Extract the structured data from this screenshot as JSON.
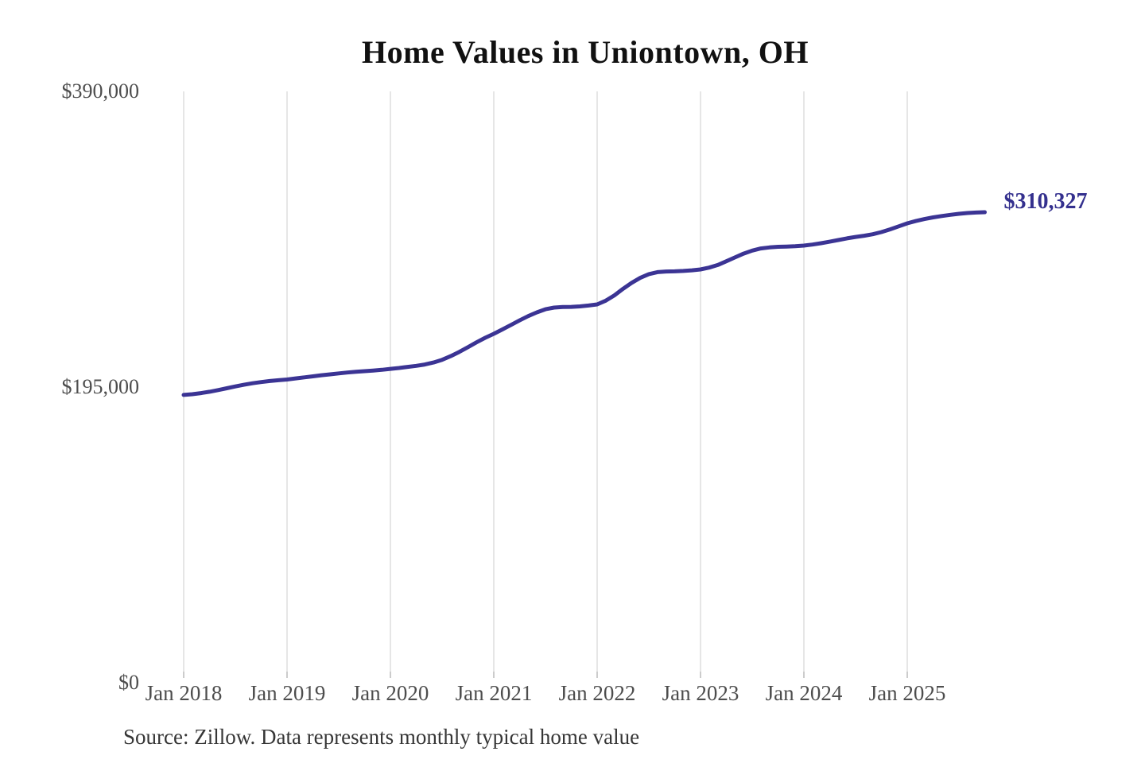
{
  "page": {
    "background": "#ffffff"
  },
  "chart_data": {
    "type": "line",
    "title": "Home Values in Uniontown, OH",
    "source_note": "Source: Zillow. Data represents monthly typical home value",
    "xlabel": "",
    "ylabel": "",
    "ylim": [
      0,
      390000
    ],
    "y_ticks": [
      {
        "value": 390000,
        "label": "$390,000"
      },
      {
        "value": 195000,
        "label": "$195,000"
      },
      {
        "value": 0,
        "label": "$0"
      }
    ],
    "x_ticks": [
      {
        "label": "Jan 2018",
        "month_index": 0
      },
      {
        "label": "Jan 2019",
        "month_index": 12
      },
      {
        "label": "Jan 2020",
        "month_index": 24
      },
      {
        "label": "Jan 2021",
        "month_index": 36
      },
      {
        "label": "Jan 2022",
        "month_index": 48
      },
      {
        "label": "Jan 2023",
        "month_index": 60
      },
      {
        "label": "Jan 2024",
        "month_index": 72
      },
      {
        "label": "Jan 2025",
        "month_index": 84
      }
    ],
    "grid": {
      "vertical": true,
      "horizontal": false,
      "color": "#cccccc",
      "tick_color": "#999999"
    },
    "legend": "none",
    "title_color": "#111111",
    "axis_label_color": "#4d4d4d",
    "source_color": "#363636",
    "end_label": {
      "text": "$310,327",
      "color": "#34308e"
    },
    "series": [
      {
        "name": "Monthly typical home value",
        "color": "#3b3494",
        "x": [
          "2018-01",
          "2018-02",
          "2018-03",
          "2018-04",
          "2018-05",
          "2018-06",
          "2018-07",
          "2018-08",
          "2018-09",
          "2018-10",
          "2018-11",
          "2018-12",
          "2019-01",
          "2019-02",
          "2019-03",
          "2019-04",
          "2019-05",
          "2019-06",
          "2019-07",
          "2019-08",
          "2019-09",
          "2019-10",
          "2019-11",
          "2019-12",
          "2020-01",
          "2020-02",
          "2020-03",
          "2020-04",
          "2020-05",
          "2020-06",
          "2020-07",
          "2020-08",
          "2020-09",
          "2020-10",
          "2020-11",
          "2020-12",
          "2021-01",
          "2021-02",
          "2021-03",
          "2021-04",
          "2021-05",
          "2021-06",
          "2021-07",
          "2021-08",
          "2021-09",
          "2021-10",
          "2021-11",
          "2021-12",
          "2022-01",
          "2022-02",
          "2022-03",
          "2022-04",
          "2022-05",
          "2022-06",
          "2022-07",
          "2022-08",
          "2022-09",
          "2022-10",
          "2022-11",
          "2022-12",
          "2023-01",
          "2023-02",
          "2023-03",
          "2023-04",
          "2023-05",
          "2023-06",
          "2023-07",
          "2023-08",
          "2023-09",
          "2023-10",
          "2023-11",
          "2023-12",
          "2024-01",
          "2024-02",
          "2024-03",
          "2024-04",
          "2024-05",
          "2024-06",
          "2024-07",
          "2024-08",
          "2024-09",
          "2024-10",
          "2024-11",
          "2024-12",
          "2025-01",
          "2025-02",
          "2025-03",
          "2025-04",
          "2025-05",
          "2025-06",
          "2025-07",
          "2025-08",
          "2025-09",
          "2025-10"
        ],
        "values": [
          189800,
          190300,
          191000,
          191900,
          193000,
          194200,
          195400,
          196500,
          197500,
          198300,
          199000,
          199500,
          200000,
          200700,
          201400,
          202100,
          202800,
          203400,
          204000,
          204600,
          205100,
          205500,
          205900,
          206400,
          207000,
          207600,
          208300,
          209000,
          209900,
          211200,
          213000,
          215400,
          218200,
          221300,
          224500,
          227500,
          230100,
          233000,
          236000,
          239000,
          241800,
          244300,
          246300,
          247400,
          247800,
          247900,
          248200,
          248800,
          249500,
          252000,
          255500,
          259800,
          263700,
          267000,
          269500,
          270800,
          271200,
          271300,
          271600,
          272000,
          272600,
          273800,
          275500,
          278000,
          280500,
          283000,
          285000,
          286400,
          287100,
          287500,
          287700,
          287900,
          288300,
          289000,
          289900,
          290900,
          292000,
          293100,
          294000,
          294800,
          295800,
          297200,
          299000,
          301000,
          303000,
          304500,
          305800,
          306900,
          307800,
          308600,
          309300,
          309800,
          310100,
          310327
        ]
      }
    ]
  }
}
